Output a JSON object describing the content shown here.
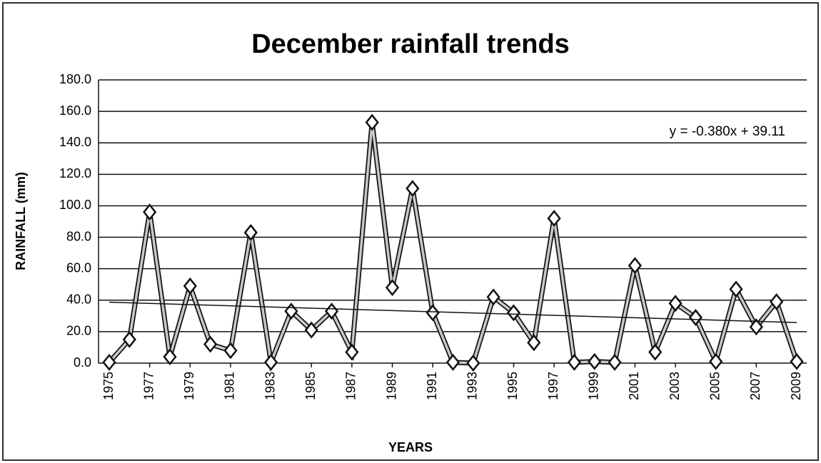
{
  "chart_data": {
    "type": "line",
    "title": "December rainfall trends",
    "x_label": "YEARS",
    "y_label": "RAINFALL (mm)",
    "x": [
      1975,
      1976,
      1977,
      1978,
      1979,
      1980,
      1981,
      1982,
      1983,
      1984,
      1985,
      1986,
      1987,
      1988,
      1989,
      1990,
      1991,
      1992,
      1993,
      1994,
      1995,
      1996,
      1997,
      1998,
      1999,
      2000,
      2001,
      2002,
      2003,
      2004,
      2005,
      2006,
      2007,
      2008,
      2009
    ],
    "series": [
      {
        "name": "December rainfall",
        "color": "#c8c8c8",
        "values": [
          0.5,
          15,
          96,
          4,
          49,
          12,
          8,
          83,
          0.5,
          33,
          21,
          33,
          7,
          153,
          48,
          111,
          32,
          0.5,
          0,
          42,
          32,
          13,
          92,
          0.5,
          1,
          0.5,
          62,
          7,
          38,
          29,
          1,
          47,
          23,
          39,
          1
        ]
      }
    ],
    "trendline": {
      "label": "y = -0.380x + 39.11",
      "slope": -0.38,
      "intercept": 39.11
    },
    "xlim": [
      1975,
      2009
    ],
    "xticks": [
      1975,
      1977,
      1979,
      1981,
      1983,
      1985,
      1987,
      1989,
      1991,
      1993,
      1995,
      1997,
      1999,
      2001,
      2003,
      2005,
      2007,
      2009
    ],
    "ylim": [
      0,
      180
    ],
    "yticks": [
      {
        "value": 0,
        "label": "0.0"
      },
      {
        "value": 20,
        "label": "20.0"
      },
      {
        "value": 40,
        "label": "40.0"
      },
      {
        "value": 60,
        "label": "60.0"
      },
      {
        "value": 80,
        "label": "80.0"
      },
      {
        "value": 100,
        "label": "100.0"
      },
      {
        "value": 120,
        "label": "120.0"
      },
      {
        "value": 140,
        "label": "140.0"
      },
      {
        "value": 160,
        "label": "160.0"
      },
      {
        "value": 180,
        "label": "180.0"
      }
    ],
    "grid": true
  }
}
